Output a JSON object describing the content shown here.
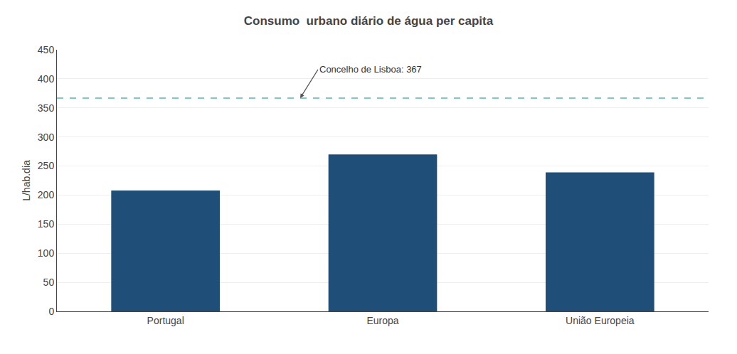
{
  "chart_data": {
    "type": "bar",
    "title": "Consumo  urbano diário de água per capita",
    "categories": [
      "Portugal",
      "Europa",
      "União Europeia"
    ],
    "values": [
      208,
      270,
      239
    ],
    "color": "#1F4E79",
    "ylabel": "L/hab.dia",
    "ylim": [
      0,
      450
    ],
    "yticks": [
      0,
      50,
      100,
      150,
      200,
      250,
      300,
      350,
      400,
      450
    ],
    "grid": true,
    "reference_line": {
      "y": 367,
      "color": "#7EC8C8",
      "line_style": "dashed"
    },
    "annotations": [
      {
        "text": "Concelho de Lisboa: 367"
      }
    ]
  }
}
